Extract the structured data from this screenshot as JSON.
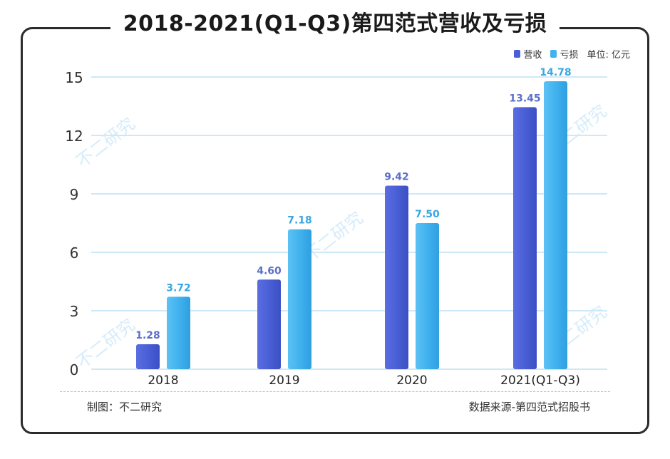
{
  "header": {
    "title": "2018-2021(Q1-Q3)第四范式营收及亏损"
  },
  "legend": {
    "items": [
      {
        "label": "营收",
        "color": "#4a5fd6"
      },
      {
        "label": "亏损",
        "color": "#41b2ee"
      }
    ],
    "unit": "单位: 亿元"
  },
  "footer": {
    "left": "制图：不二研究",
    "right": "数据来源-第四范式招股书"
  },
  "watermark": {
    "text": "不二研究"
  },
  "chart_data": {
    "type": "bar",
    "categories": [
      "2018",
      "2019",
      "2020",
      "2021(Q1-Q3)"
    ],
    "series": [
      {
        "name": "营收",
        "values": [
          1.28,
          4.6,
          9.42,
          13.45
        ],
        "labels": [
          "1.28",
          "4.60",
          "9.42",
          "13.45"
        ]
      },
      {
        "name": "亏损",
        "values": [
          3.72,
          7.18,
          7.5,
          14.78
        ],
        "labels": [
          "3.72",
          "7.18",
          "7.50",
          "14.78"
        ]
      }
    ],
    "yticks": [
      0,
      3,
      6,
      9,
      12,
      15
    ],
    "ylim": [
      0,
      15
    ],
    "grid": true,
    "legend_position": "top-right",
    "colors": {
      "revenue": "#4a5fd6",
      "loss": "#41b2ee",
      "grid": "#cfe8f8",
      "revenue_label": "#5b6fc9",
      "loss_label": "#3aa6e0"
    }
  }
}
